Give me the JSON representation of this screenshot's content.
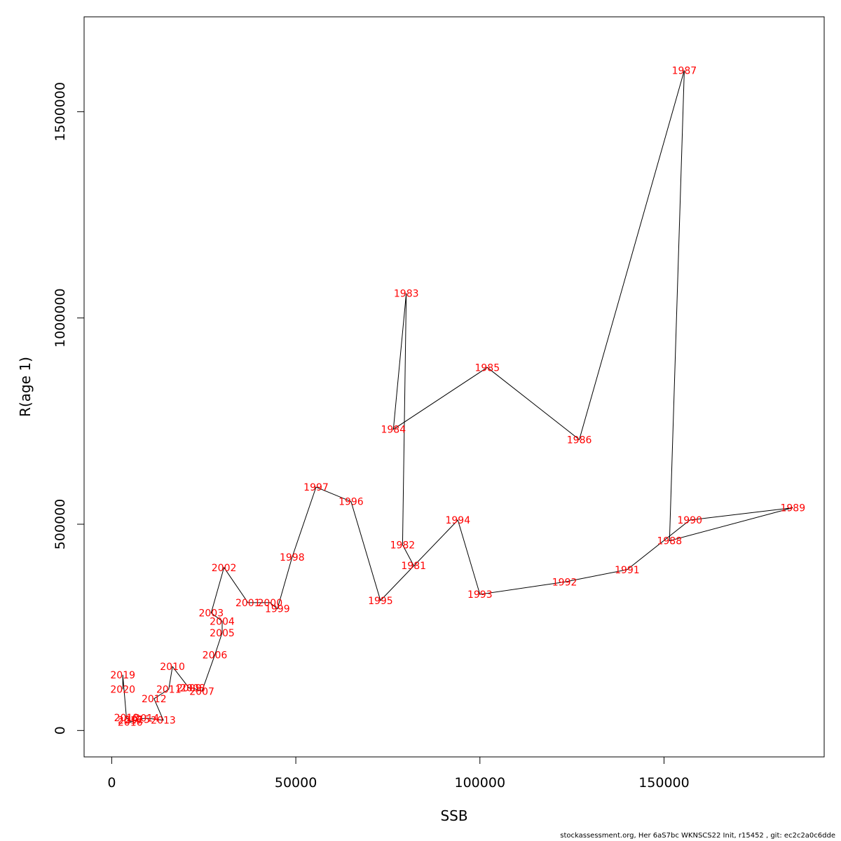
{
  "chart_data": {
    "type": "line",
    "xlabel": "SSB",
    "ylabel": "R(age 1)",
    "xlim": [
      -7500,
      193500
    ],
    "ylim": [
      -64000,
      1730000
    ],
    "xticks": [
      0,
      50000,
      100000,
      150000
    ],
    "xtick_labels": [
      "0",
      "50000",
      "100000",
      "150000"
    ],
    "yticks": [
      0,
      500000,
      1000000,
      1500000
    ],
    "ytick_labels": [
      "0",
      "500000",
      "1000000",
      "1500000"
    ],
    "grid": false,
    "legend": "none",
    "line_color": "#000000",
    "label_color": "#ff0000",
    "points": [
      {
        "label": "1981",
        "x": 82000,
        "y": 400000
      },
      {
        "label": "1982",
        "x": 79000,
        "y": 450000
      },
      {
        "label": "1983",
        "x": 80000,
        "y": 1060000
      },
      {
        "label": "1984",
        "x": 76500,
        "y": 730000
      },
      {
        "label": "1985",
        "x": 102000,
        "y": 880000
      },
      {
        "label": "1986",
        "x": 127000,
        "y": 705000
      },
      {
        "label": "1987",
        "x": 155500,
        "y": 1600000
      },
      {
        "label": "1988",
        "x": 151500,
        "y": 460000
      },
      {
        "label": "1989",
        "x": 185000,
        "y": 540000
      },
      {
        "label": "1990",
        "x": 157000,
        "y": 510000
      },
      {
        "label": "1991",
        "x": 140000,
        "y": 390000
      },
      {
        "label": "1992",
        "x": 123000,
        "y": 360000
      },
      {
        "label": "1993",
        "x": 100000,
        "y": 330000
      },
      {
        "label": "1994",
        "x": 94000,
        "y": 510000
      },
      {
        "label": "1995",
        "x": 73000,
        "y": 315000
      },
      {
        "label": "1996",
        "x": 65000,
        "y": 555000
      },
      {
        "label": "1997",
        "x": 55500,
        "y": 590000
      },
      {
        "label": "1998",
        "x": 49000,
        "y": 420000
      },
      {
        "label": "1999",
        "x": 45000,
        "y": 295000
      },
      {
        "label": "2000",
        "x": 43000,
        "y": 310000
      },
      {
        "label": "2001",
        "x": 37000,
        "y": 310000
      },
      {
        "label": "2002",
        "x": 30500,
        "y": 395000
      },
      {
        "label": "2003",
        "x": 27000,
        "y": 285000
      },
      {
        "label": "2004",
        "x": 30000,
        "y": 265000
      },
      {
        "label": "2005",
        "x": 30000,
        "y": 237000
      },
      {
        "label": "2006",
        "x": 28000,
        "y": 183000
      },
      {
        "label": "2007",
        "x": 24500,
        "y": 95000
      },
      {
        "label": "2008",
        "x": 22000,
        "y": 103000
      },
      {
        "label": "2009",
        "x": 21000,
        "y": 103000
      },
      {
        "label": "2010",
        "x": 16500,
        "y": 155000
      },
      {
        "label": "2011",
        "x": 15500,
        "y": 100000
      },
      {
        "label": "2012",
        "x": 11500,
        "y": 77000
      },
      {
        "label": "2013",
        "x": 14000,
        "y": 25000
      },
      {
        "label": "2014",
        "x": 9500,
        "y": 30000
      },
      {
        "label": "2015",
        "x": 7000,
        "y": 27000
      },
      {
        "label": "2016",
        "x": 5000,
        "y": 20000
      },
      {
        "label": "2017",
        "x": 5000,
        "y": 25000
      },
      {
        "label": "2018",
        "x": 4000,
        "y": 31000
      },
      {
        "label": "2019",
        "x": 3000,
        "y": 135000
      },
      {
        "label": "2020",
        "x": 3000,
        "y": 100000
      }
    ]
  },
  "footer": {
    "text": "stockassessment.org, Her  6aS7bc  WKNSCS22  Init, r15452 , git: ec2c2a0c6dde"
  }
}
